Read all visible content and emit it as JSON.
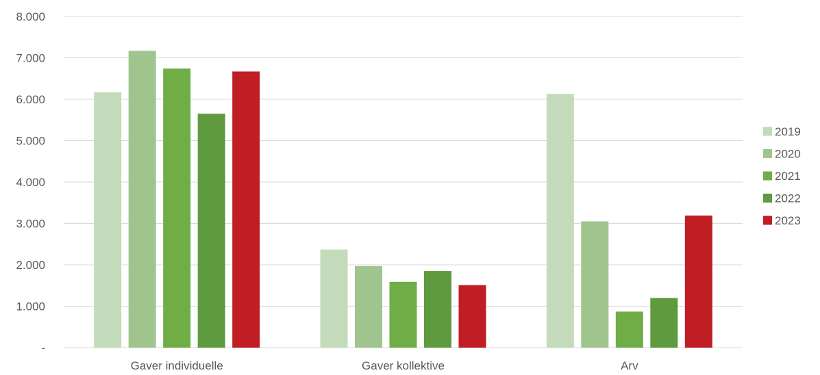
{
  "chart_data": {
    "type": "bar",
    "categories": [
      "Gaver individuelle",
      "Gaver kollektive",
      "Arv"
    ],
    "series": [
      {
        "name": "2019",
        "color": "#c3dbbb",
        "values": [
          6170,
          2370,
          6130
        ]
      },
      {
        "name": "2020",
        "color": "#a0c48e",
        "values": [
          7170,
          1970,
          3050
        ]
      },
      {
        "name": "2021",
        "color": "#70ad47",
        "values": [
          6740,
          1590,
          870
        ]
      },
      {
        "name": "2022",
        "color": "#5f9a3e",
        "values": [
          5650,
          1850,
          1200
        ]
      },
      {
        "name": "2023",
        "color": "#c01d24",
        "values": [
          6670,
          1510,
          3190
        ]
      }
    ],
    "ylim": [
      0,
      8000
    ],
    "yticks": [
      {
        "value": 0,
        "label": "-"
      },
      {
        "value": 1000,
        "label": "1.000"
      },
      {
        "value": 2000,
        "label": "2.000"
      },
      {
        "value": 3000,
        "label": "3.000"
      },
      {
        "value": 4000,
        "label": "4.000"
      },
      {
        "value": 5000,
        "label": "5.000"
      },
      {
        "value": 6000,
        "label": "6.000"
      },
      {
        "value": 7000,
        "label": "7.000"
      },
      {
        "value": 8000,
        "label": "8.000"
      }
    ],
    "grid": true,
    "legend_position": "right",
    "title": "",
    "xlabel": "",
    "ylabel": ""
  }
}
